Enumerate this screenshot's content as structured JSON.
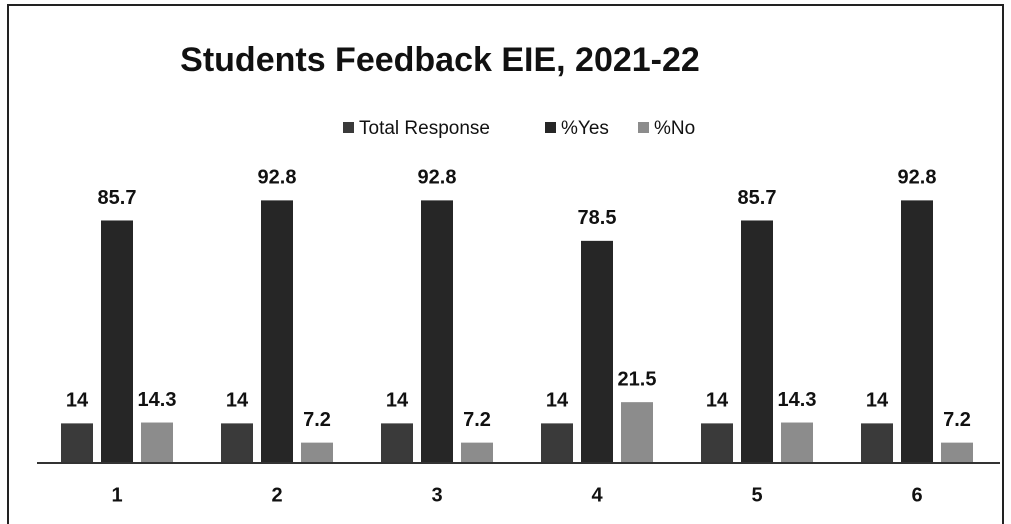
{
  "chart_data": {
    "type": "bar",
    "title": "Students Feedback EIE, 2021-22",
    "categories": [
      "1",
      "2",
      "3",
      "4",
      "5",
      "6"
    ],
    "series": [
      {
        "name": "Total Response",
        "color": "#3a3a3a",
        "values": [
          14,
          14,
          14,
          14,
          14,
          14
        ]
      },
      {
        "name": "%Yes",
        "color": "#262626",
        "values": [
          85.7,
          92.8,
          92.8,
          78.5,
          85.7,
          92.8
        ]
      },
      {
        "name": "%No",
        "color": "#8c8c8c",
        "values": [
          14.3,
          7.2,
          7.2,
          21.5,
          14.3,
          7.2
        ]
      }
    ],
    "ylim": [
      0,
      100
    ],
    "legend": "top"
  }
}
